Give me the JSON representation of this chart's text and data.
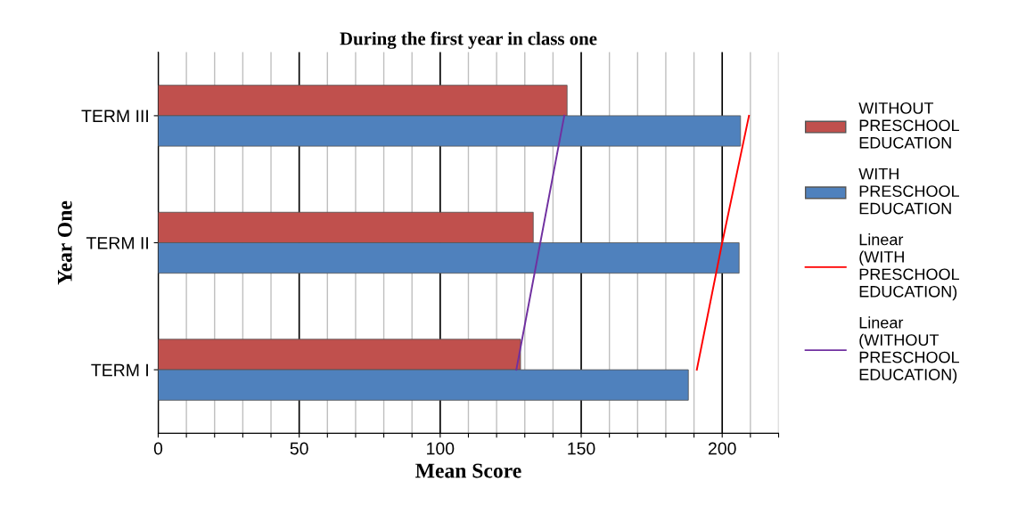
{
  "chart_data": {
    "type": "bar",
    "orientation": "horizontal",
    "title": "During the first year in class one",
    "xlabel": "Mean Score",
    "ylabel": "Year One",
    "categories": [
      "TERM III",
      "TERM II",
      "TERM I"
    ],
    "series": [
      {
        "name": "WITHOUT PRESCHOOL EDUCATION",
        "color": "#c0504d",
        "values": [
          145,
          133,
          128.5
        ]
      },
      {
        "name": "WITH PRESCHOOL EDUCATION",
        "color": "#4f81bd",
        "values": [
          206.5,
          206,
          188
        ]
      },
      {
        "name": "Linear (WITH PRESCHOOL EDUCATION)",
        "type": "line",
        "color": "#ff0000",
        "values": [
          209.5,
          200,
          191
        ]
      },
      {
        "name": "Linear (WITHOUT PRESCHOOL EDUCATION)",
        "type": "line",
        "color": "#7030a0",
        "values": [
          144,
          135.5,
          127
        ]
      }
    ],
    "xlim": [
      0,
      220
    ],
    "xticks": [
      0,
      {
        "value": 10,
        "label": null
      },
      {
        "value": 20,
        "label": null
      },
      {
        "value": 30,
        "label": null
      },
      {
        "value": 40,
        "label": null
      },
      50,
      {
        "value": 60,
        "label": null
      },
      {
        "value": 70,
        "label": null
      },
      {
        "value": 80,
        "label": null
      },
      {
        "value": 90,
        "label": null
      },
      100,
      {
        "value": 110,
        "label": null
      },
      {
        "value": 120,
        "label": null
      },
      {
        "value": 130,
        "label": null
      },
      {
        "value": 140,
        "label": null
      },
      150,
      {
        "value": 160,
        "label": null
      },
      {
        "value": 170,
        "label": null
      },
      {
        "value": 180,
        "label": null
      },
      {
        "value": 190,
        "label": null
      },
      200,
      {
        "value": 210,
        "label": null
      },
      {
        "value": 220,
        "label": null
      }
    ],
    "grid": "x",
    "legend": "right"
  }
}
